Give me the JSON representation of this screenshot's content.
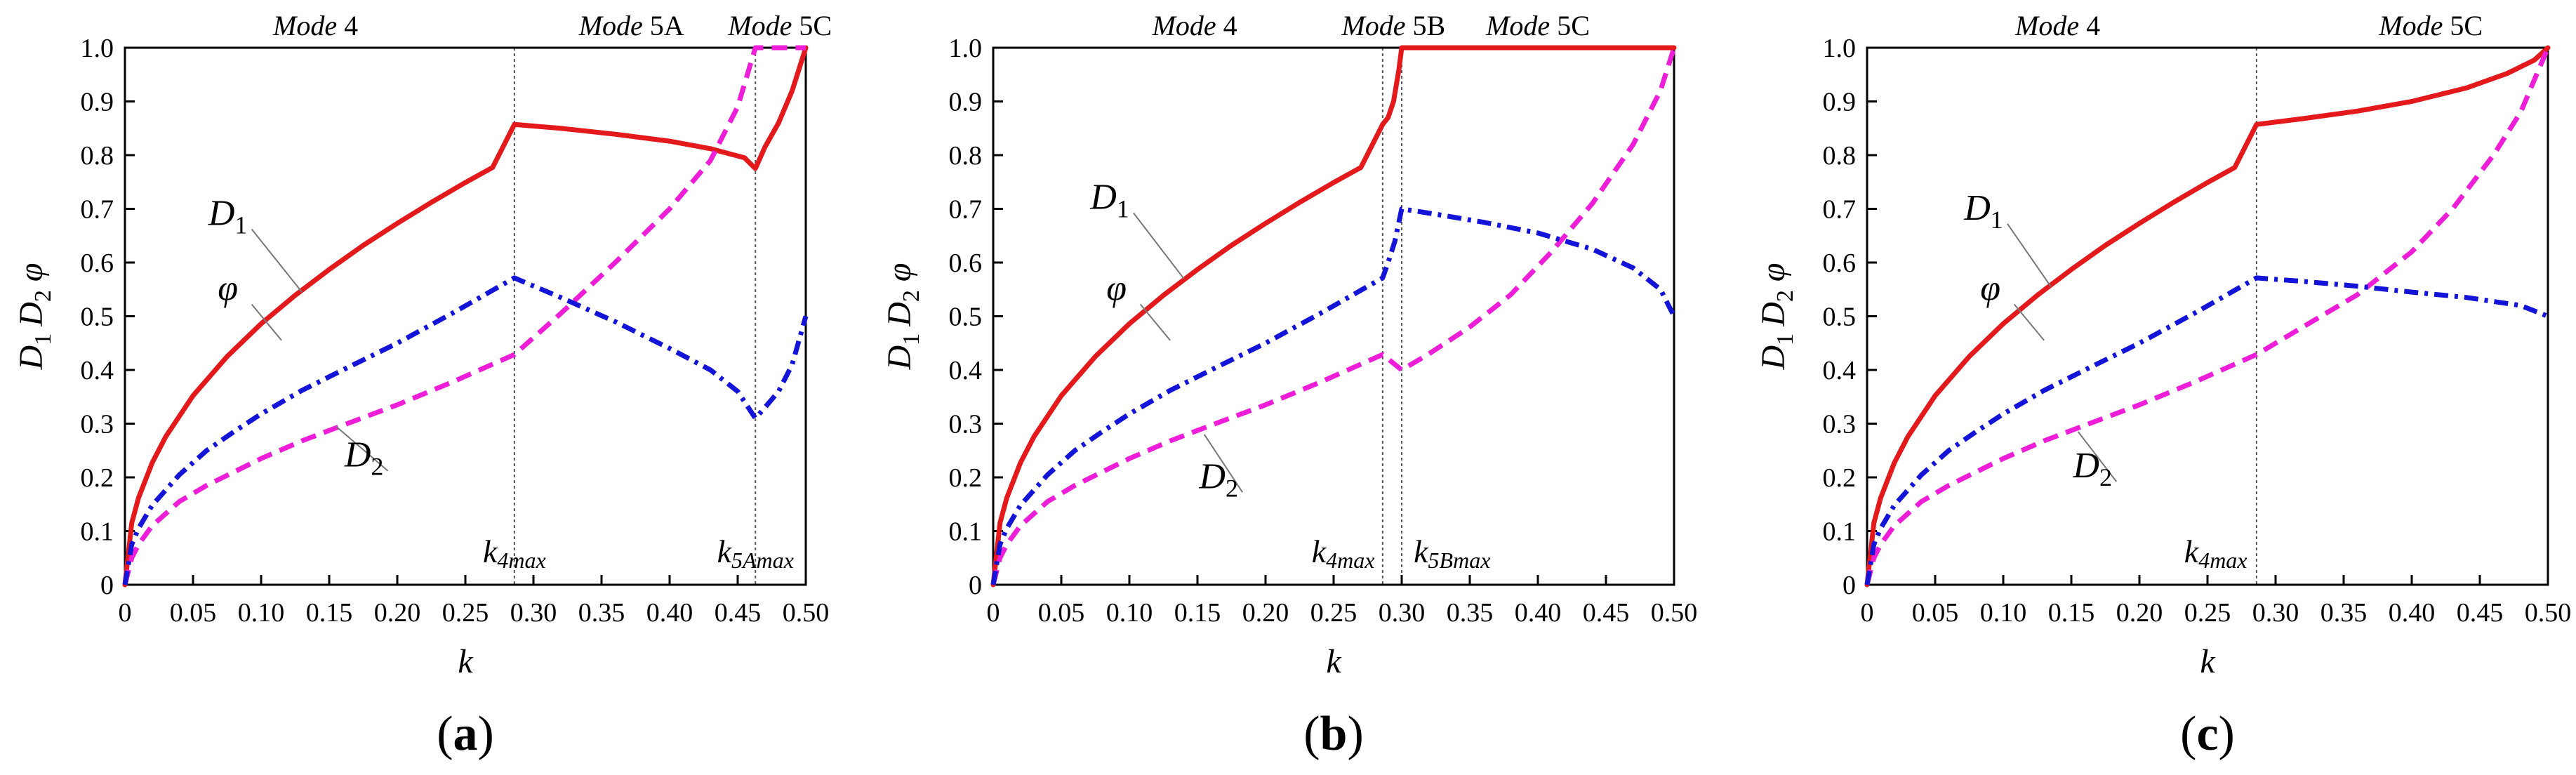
{
  "chart_data": [
    {
      "panel": "a",
      "type": "line",
      "panel_label_parts": [
        "(",
        "a",
        ")"
      ],
      "xlabel": "k",
      "ylabel_parts": [
        "D",
        "1",
        "D",
        "2",
        "φ"
      ],
      "xlim": [
        0,
        0.5
      ],
      "ylim": [
        0,
        1
      ],
      "xticks": [
        "0",
        "0.05",
        "0.10",
        "0.15",
        "0.20",
        "0.25",
        "0.30",
        "0.35",
        "0.40",
        "0.45",
        "0.50"
      ],
      "yticks": [
        "0",
        "0.1",
        "0.2",
        "0.3",
        "0.4",
        "0.5",
        "0.6",
        "0.7",
        "0.8",
        "0.9",
        "1.0"
      ],
      "mode_labels": [
        {
          "text": "Mode 4",
          "x": 0.14
        },
        {
          "text": "Mode 5A",
          "x": 0.372
        },
        {
          "text": "Mode 5C",
          "x": 0.481
        }
      ],
      "vlines": [
        0.286,
        0.463
      ],
      "k_markers": [
        {
          "main": "k",
          "sub": "4max",
          "x": 0.286
        },
        {
          "main": "k",
          "sub": "5Amax",
          "x": 0.463
        }
      ],
      "series": [
        {
          "name": "D1",
          "color": "#e3191c",
          "style": "solid",
          "x": [
            0,
            0.005,
            0.01,
            0.02,
            0.03,
            0.05,
            0.075,
            0.1,
            0.125,
            0.15,
            0.175,
            0.2,
            0.225,
            0.25,
            0.27,
            0.286,
            0.32,
            0.36,
            0.4,
            0.43,
            0.455,
            0.463,
            0.47,
            0.48,
            0.49,
            0.5
          ],
          "y": [
            0,
            0.115,
            0.162,
            0.227,
            0.276,
            0.352,
            0.425,
            0.486,
            0.539,
            0.587,
            0.632,
            0.673,
            0.712,
            0.749,
            0.777,
            0.8571,
            0.85,
            0.839,
            0.826,
            0.812,
            0.795,
            0.775,
            0.815,
            0.86,
            0.92,
            1.0
          ]
        },
        {
          "name": "D2",
          "color": "#ee1ed8",
          "style": "dashed",
          "x": [
            0,
            0.005,
            0.01,
            0.02,
            0.04,
            0.06,
            0.08,
            0.1,
            0.13,
            0.16,
            0.2,
            0.24,
            0.286,
            0.32,
            0.36,
            0.4,
            0.43,
            0.45,
            0.463,
            0.5
          ],
          "y": [
            0,
            0.05,
            0.075,
            0.11,
            0.155,
            0.185,
            0.21,
            0.235,
            0.268,
            0.297,
            0.335,
            0.377,
            0.4286,
            0.505,
            0.6,
            0.7,
            0.79,
            0.89,
            1.0,
            1.0
          ]
        },
        {
          "name": "φ",
          "color": "#1414d8",
          "style": "dashdot",
          "x": [
            0,
            0.005,
            0.01,
            0.02,
            0.04,
            0.06,
            0.08,
            0.1,
            0.13,
            0.16,
            0.2,
            0.24,
            0.286,
            0.32,
            0.36,
            0.4,
            0.43,
            0.45,
            0.463,
            0.47,
            0.48,
            0.49,
            0.5
          ],
          "y": [
            0,
            0.075,
            0.105,
            0.148,
            0.205,
            0.25,
            0.285,
            0.318,
            0.362,
            0.4,
            0.45,
            0.505,
            0.5714,
            0.535,
            0.49,
            0.44,
            0.4,
            0.36,
            0.31,
            0.33,
            0.36,
            0.41,
            0.5
          ]
        }
      ],
      "curve_labels": [
        {
          "series": "D1",
          "text": "D",
          "sub": "1",
          "at": [
            0.09,
            0.67
          ],
          "to": [
            0.13,
            0.545
          ]
        },
        {
          "series": "φ",
          "text": "φ",
          "sub": "",
          "at": [
            0.09,
            0.53
          ],
          "to": [
            0.115,
            0.455
          ]
        },
        {
          "series": "D2",
          "text": "D",
          "sub": "2",
          "at": [
            0.19,
            0.22
          ],
          "to": [
            0.155,
            0.295
          ]
        }
      ]
    },
    {
      "panel": "b",
      "type": "line",
      "panel_label_parts": [
        "(",
        "b",
        ")"
      ],
      "xlabel": "k",
      "ylabel_parts": [
        "D",
        "1",
        "D",
        "2",
        "φ"
      ],
      "xlim": [
        0,
        0.5
      ],
      "ylim": [
        0,
        1
      ],
      "xticks": [
        "0",
        "0.05",
        "0.10",
        "0.15",
        "0.20",
        "0.25",
        "0.30",
        "0.35",
        "0.40",
        "0.45",
        "0.50"
      ],
      "yticks": [
        "0",
        "0.1",
        "0.2",
        "0.3",
        "0.4",
        "0.5",
        "0.6",
        "0.7",
        "0.8",
        "0.9",
        "1.0"
      ],
      "mode_labels": [
        {
          "text": "Mode 4",
          "x": 0.148
        },
        {
          "text": "Mode 5B",
          "x": 0.294
        },
        {
          "text": "Mode 5C",
          "x": 0.4
        }
      ],
      "vlines": [
        0.286,
        0.3
      ],
      "k_markers": [
        {
          "main": "k",
          "sub": "4max",
          "x": 0.257
        },
        {
          "main": "k",
          "sub": "5Bmax",
          "x": 0.337
        }
      ],
      "series": [
        {
          "name": "D1",
          "color": "#e3191c",
          "style": "solid",
          "x": [
            0,
            0.005,
            0.01,
            0.02,
            0.03,
            0.05,
            0.075,
            0.1,
            0.125,
            0.15,
            0.175,
            0.2,
            0.225,
            0.25,
            0.27,
            0.286,
            0.29,
            0.294,
            0.298,
            0.3,
            0.5
          ],
          "y": [
            0,
            0.115,
            0.162,
            0.227,
            0.276,
            0.352,
            0.425,
            0.486,
            0.539,
            0.587,
            0.632,
            0.673,
            0.712,
            0.749,
            0.777,
            0.8571,
            0.87,
            0.9,
            0.96,
            1.0,
            1.0
          ]
        },
        {
          "name": "D2",
          "color": "#ee1ed8",
          "style": "dashed",
          "x": [
            0,
            0.005,
            0.01,
            0.02,
            0.04,
            0.06,
            0.08,
            0.1,
            0.13,
            0.16,
            0.2,
            0.24,
            0.286,
            0.3,
            0.32,
            0.35,
            0.38,
            0.41,
            0.44,
            0.47,
            0.49,
            0.5
          ],
          "y": [
            0,
            0.05,
            0.075,
            0.11,
            0.155,
            0.185,
            0.21,
            0.235,
            0.268,
            0.297,
            0.335,
            0.377,
            0.4286,
            0.4,
            0.43,
            0.48,
            0.54,
            0.62,
            0.71,
            0.82,
            0.92,
            1.0
          ]
        },
        {
          "name": "φ",
          "color": "#1414d8",
          "style": "dashdot",
          "x": [
            0,
            0.005,
            0.01,
            0.02,
            0.04,
            0.06,
            0.08,
            0.1,
            0.13,
            0.16,
            0.2,
            0.24,
            0.286,
            0.29,
            0.295,
            0.3,
            0.33,
            0.36,
            0.4,
            0.44,
            0.47,
            0.49,
            0.5
          ],
          "y": [
            0,
            0.075,
            0.105,
            0.148,
            0.205,
            0.25,
            0.285,
            0.318,
            0.362,
            0.4,
            0.45,
            0.505,
            0.5714,
            0.6,
            0.64,
            0.7,
            0.688,
            0.675,
            0.655,
            0.625,
            0.59,
            0.55,
            0.5
          ]
        }
      ],
      "curve_labels": [
        {
          "series": "D1",
          "text": "D",
          "sub": "1",
          "at": [
            0.1,
            0.7
          ],
          "to": [
            0.14,
            0.57
          ]
        },
        {
          "series": "φ",
          "text": "φ",
          "sub": "",
          "at": [
            0.105,
            0.53
          ],
          "to": [
            0.13,
            0.455
          ]
        },
        {
          "series": "D2",
          "text": "D",
          "sub": "2",
          "at": [
            0.18,
            0.18
          ],
          "to": [
            0.155,
            0.28
          ]
        }
      ]
    },
    {
      "panel": "c",
      "type": "line",
      "panel_label_parts": [
        "(",
        "c",
        ")"
      ],
      "xlabel": "k",
      "ylabel_parts": [
        "D",
        "1",
        "D",
        "2",
        "φ"
      ],
      "xlim": [
        0,
        0.5
      ],
      "ylim": [
        0,
        1
      ],
      "xticks": [
        "0",
        "0.05",
        "0.10",
        "0.15",
        "0.20",
        "0.25",
        "0.30",
        "0.35",
        "0.40",
        "0.45",
        "0.50"
      ],
      "yticks": [
        "0",
        "0.1",
        "0.2",
        "0.3",
        "0.4",
        "0.5",
        "0.6",
        "0.7",
        "0.8",
        "0.9",
        "1.0"
      ],
      "mode_labels": [
        {
          "text": "Mode 4",
          "x": 0.14
        },
        {
          "text": "Mode 5C",
          "x": 0.414
        }
      ],
      "vlines": [
        0.286
      ],
      "k_markers": [
        {
          "main": "k",
          "sub": "4max",
          "x": 0.256
        }
      ],
      "series": [
        {
          "name": "D1",
          "color": "#e3191c",
          "style": "solid",
          "x": [
            0,
            0.005,
            0.01,
            0.02,
            0.03,
            0.05,
            0.075,
            0.1,
            0.125,
            0.15,
            0.175,
            0.2,
            0.225,
            0.25,
            0.27,
            0.286,
            0.32,
            0.36,
            0.4,
            0.44,
            0.47,
            0.49,
            0.5
          ],
          "y": [
            0,
            0.115,
            0.162,
            0.227,
            0.276,
            0.352,
            0.425,
            0.486,
            0.539,
            0.587,
            0.632,
            0.673,
            0.712,
            0.749,
            0.777,
            0.8571,
            0.868,
            0.882,
            0.9,
            0.925,
            0.952,
            0.977,
            1.0
          ]
        },
        {
          "name": "D2",
          "color": "#ee1ed8",
          "style": "dashed",
          "x": [
            0,
            0.005,
            0.01,
            0.02,
            0.04,
            0.06,
            0.08,
            0.1,
            0.13,
            0.16,
            0.2,
            0.24,
            0.286,
            0.32,
            0.36,
            0.4,
            0.43,
            0.46,
            0.48,
            0.5
          ],
          "y": [
            0,
            0.05,
            0.075,
            0.11,
            0.155,
            0.185,
            0.21,
            0.235,
            0.268,
            0.297,
            0.335,
            0.377,
            0.4286,
            0.48,
            0.54,
            0.62,
            0.7,
            0.8,
            0.88,
            1.0
          ]
        },
        {
          "name": "φ",
          "color": "#1414d8",
          "style": "dashdot",
          "x": [
            0,
            0.005,
            0.01,
            0.02,
            0.04,
            0.06,
            0.08,
            0.1,
            0.13,
            0.16,
            0.2,
            0.24,
            0.286,
            0.32,
            0.36,
            0.4,
            0.44,
            0.48,
            0.5
          ],
          "y": [
            0,
            0.075,
            0.105,
            0.148,
            0.205,
            0.25,
            0.285,
            0.318,
            0.362,
            0.4,
            0.45,
            0.505,
            0.5714,
            0.565,
            0.556,
            0.545,
            0.535,
            0.52,
            0.5
          ]
        }
      ],
      "curve_labels": [
        {
          "series": "D1",
          "text": "D",
          "sub": "1",
          "at": [
            0.1,
            0.68
          ],
          "to": [
            0.135,
            0.555
          ]
        },
        {
          "series": "φ",
          "text": "φ",
          "sub": "",
          "at": [
            0.105,
            0.53
          ],
          "to": [
            0.13,
            0.455
          ]
        },
        {
          "series": "D2",
          "text": "D",
          "sub": "2",
          "at": [
            0.18,
            0.2
          ],
          "to": [
            0.155,
            0.285
          ]
        }
      ]
    }
  ]
}
